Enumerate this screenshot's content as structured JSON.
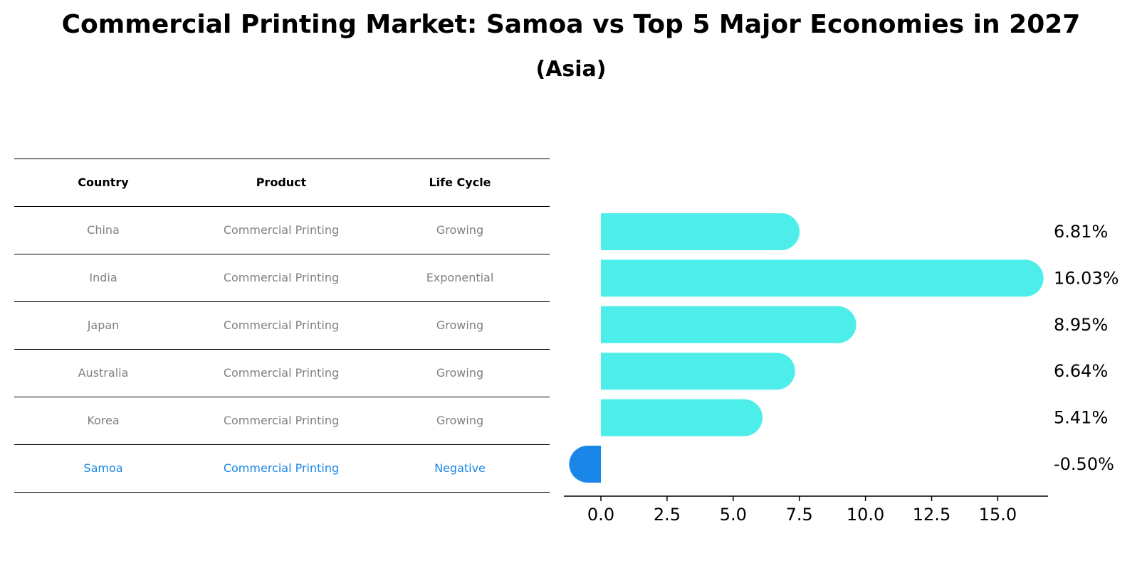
{
  "title": "Commercial Printing Market: Samoa vs Top 5 Major Economies in 2027",
  "subtitle": "(Asia)",
  "table": {
    "headers": [
      "Country",
      "Product",
      "Life Cycle"
    ],
    "rows": [
      {
        "country": "China",
        "product": "Commercial Printing",
        "life_cycle": "Growing"
      },
      {
        "country": "India",
        "product": "Commercial Printing",
        "life_cycle": "Exponential"
      },
      {
        "country": "Japan",
        "product": "Commercial Printing",
        "life_cycle": "Growing"
      },
      {
        "country": "Australia",
        "product": "Commercial Printing",
        "life_cycle": "Growing"
      },
      {
        "country": "Korea",
        "product": "Commercial Printing",
        "life_cycle": "Growing"
      },
      {
        "country": "Samoa",
        "product": "Commercial Printing",
        "life_cycle": "Negative"
      }
    ]
  },
  "colors": {
    "bar": "#4deeea",
    "highlight": "#1a86e8",
    "muted_text": "#808080"
  },
  "chart_data": {
    "type": "bar",
    "orientation": "horizontal",
    "categories": [
      "China",
      "India",
      "Japan",
      "Australia",
      "Korea",
      "Samoa"
    ],
    "values": [
      6.81,
      16.03,
      8.95,
      6.64,
      5.41,
      -0.5
    ],
    "value_labels": [
      "6.81%",
      "16.03%",
      "8.95%",
      "6.64%",
      "5.41%",
      "-0.50%"
    ],
    "highlight_category": "Samoa",
    "xlim": [
      -1.4,
      16.9
    ],
    "xticks": [
      0.0,
      2.5,
      5.0,
      7.5,
      10.0,
      12.5,
      15.0
    ],
    "xtick_labels": [
      "0.0",
      "2.5",
      "5.0",
      "7.5",
      "10.0",
      "12.5",
      "15.0"
    ],
    "xlabel": "",
    "ylabel": "",
    "grid": false
  }
}
